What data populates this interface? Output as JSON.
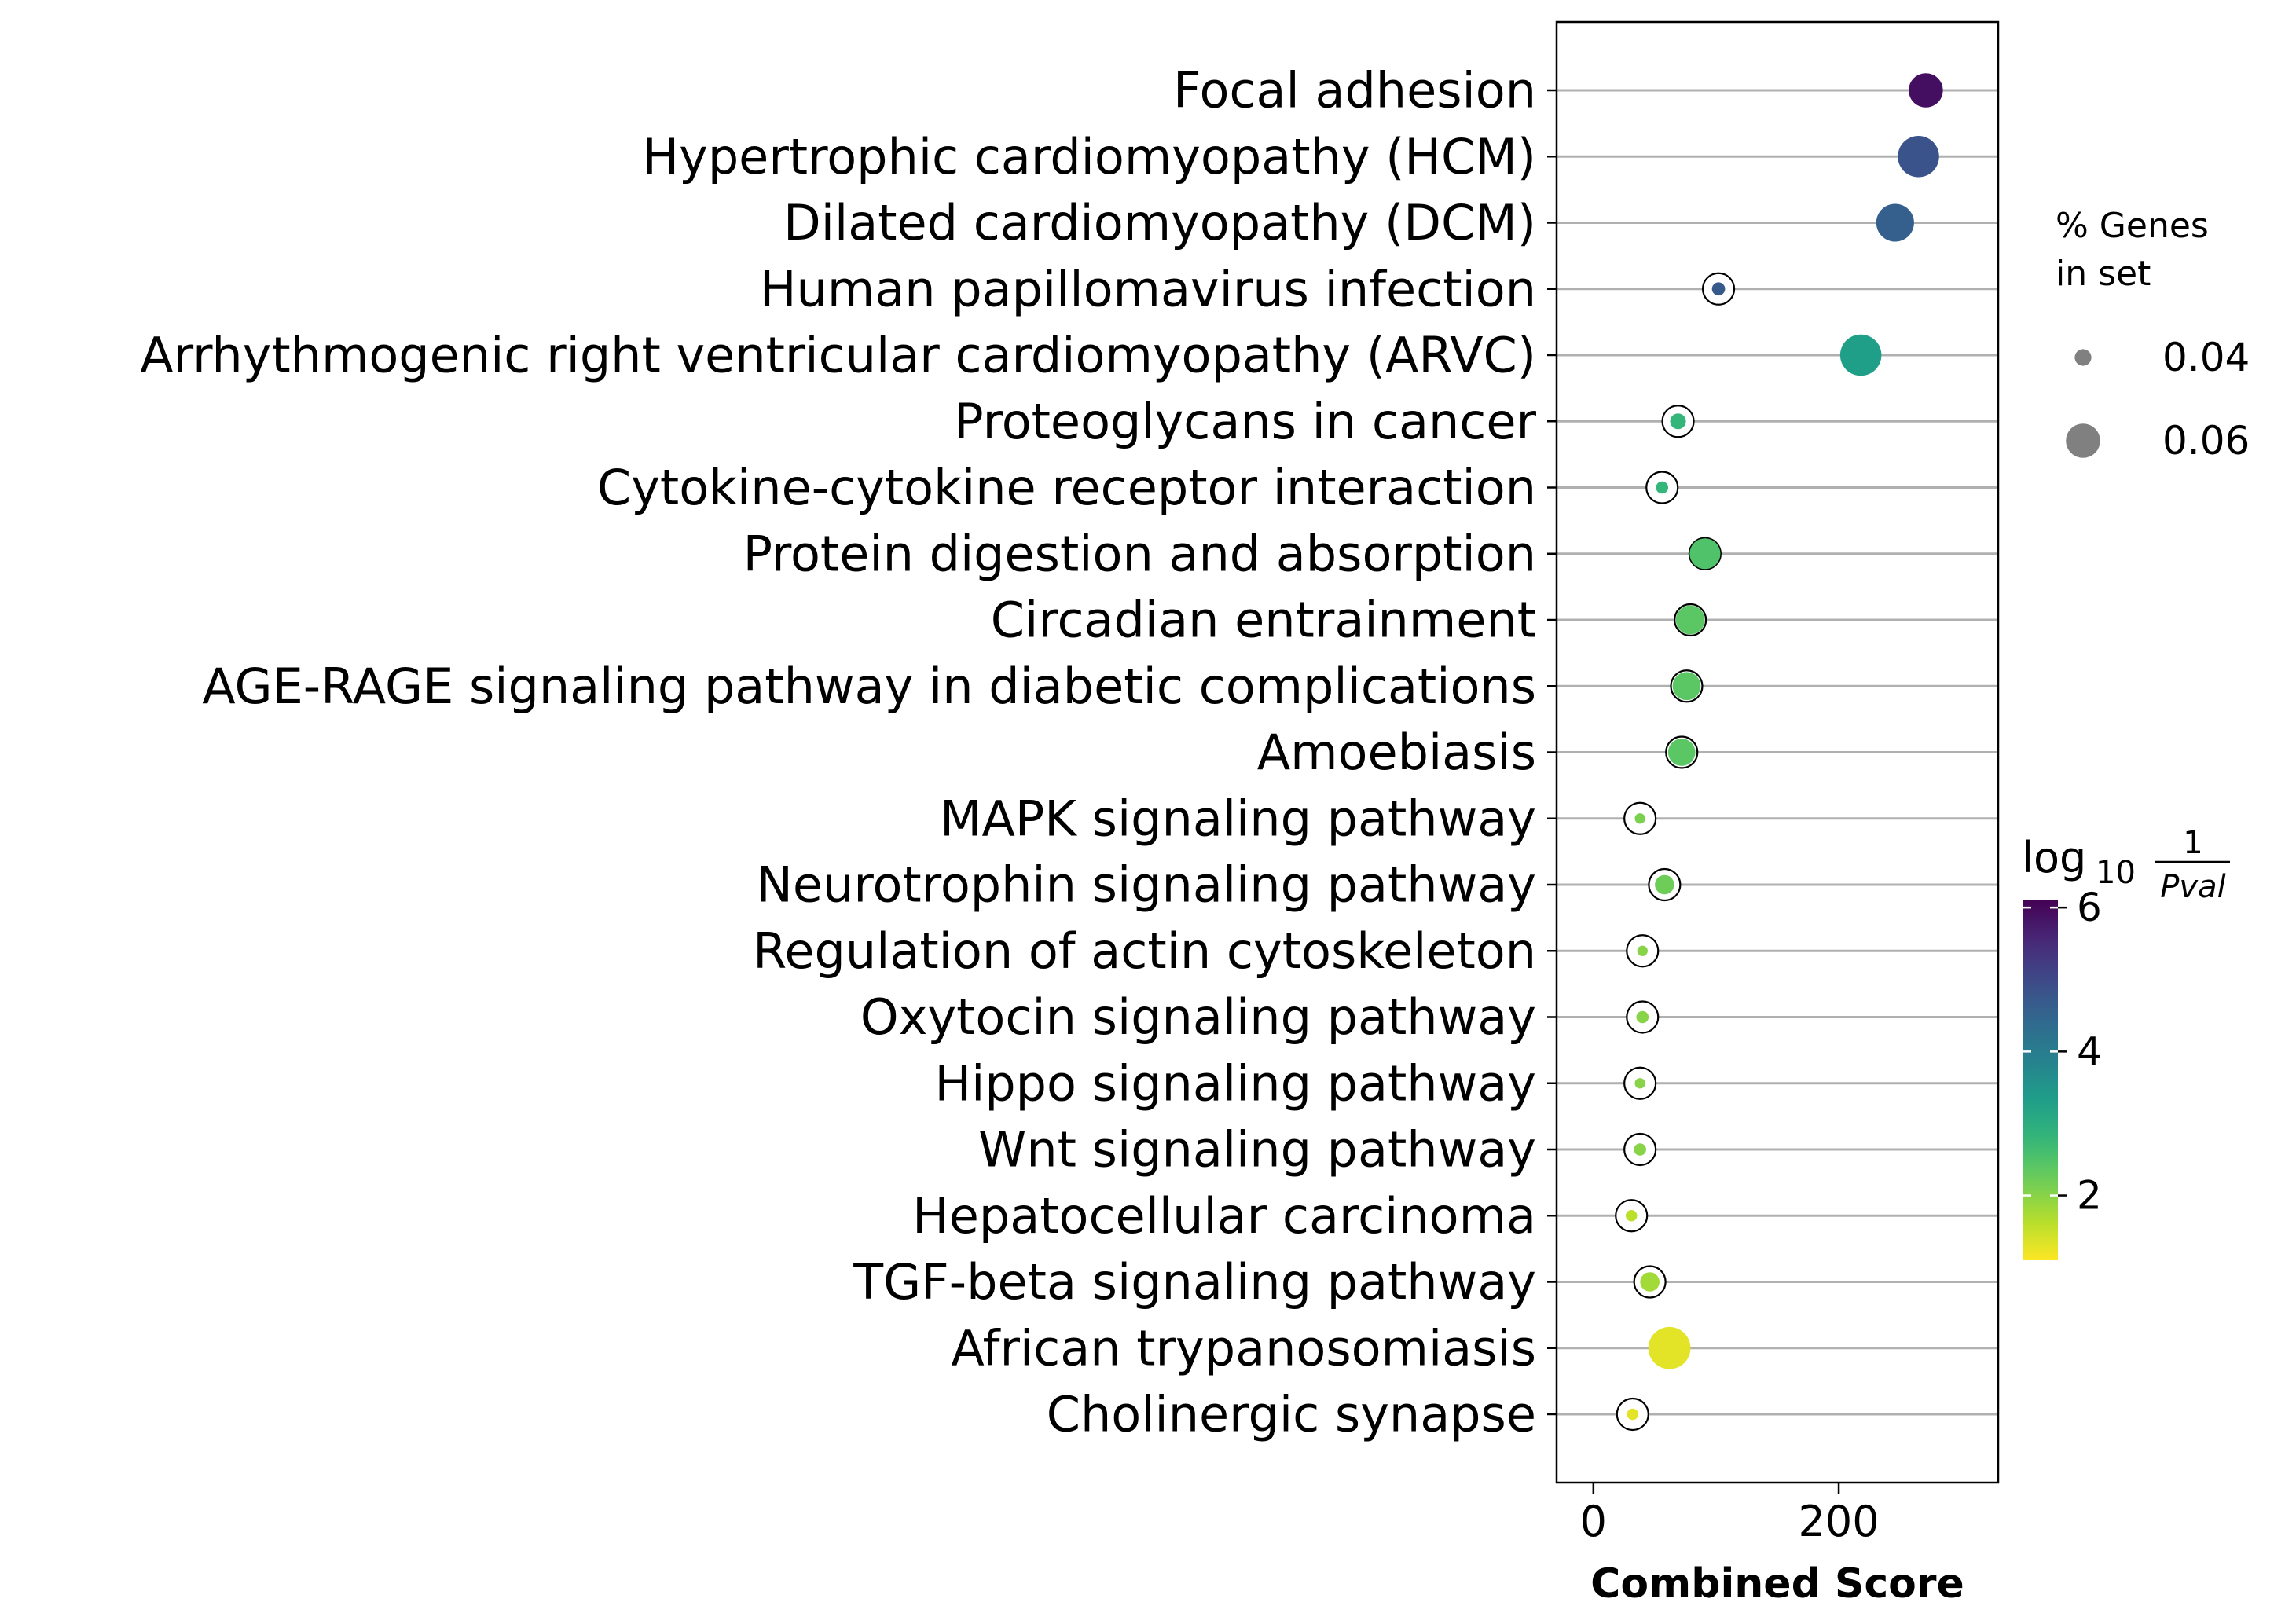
{
  "chart_data": {
    "type": "scatter",
    "xlabel": "Combined Score",
    "ylabel": "",
    "xlim": [
      -30,
      330
    ],
    "xticks": [
      0,
      200
    ],
    "grid": "horizontal",
    "categories": [
      "Focal adhesion",
      "Hypertrophic cardiomyopathy (HCM)",
      "Dilated cardiomyopathy (DCM)",
      "Human papillomavirus infection",
      "Arrhythmogenic right ventricular cardiomyopathy (ARVC)",
      "Proteoglycans in cancer",
      "Cytokine-cytokine receptor interaction",
      "Protein digestion and absorption",
      "Circadian entrainment",
      "AGE-RAGE signaling pathway in diabetic complications",
      "Amoebiasis",
      "MAPK signaling pathway",
      "Neurotrophin signaling pathway",
      "Regulation of actin cytoskeleton",
      "Oxytocin signaling pathway",
      "Hippo signaling pathway",
      "Wnt signaling pathway",
      "Hepatocellular carcinoma",
      "TGF-beta signaling pathway",
      "African trypanosomiasis",
      "Cholinergic synapse"
    ],
    "series": [
      {
        "x": [
          271,
          265,
          246,
          102,
          218,
          69,
          56,
          91,
          79,
          76,
          72,
          38,
          58,
          40,
          40,
          38,
          38,
          31,
          46,
          62,
          32
        ],
        "log10_inv_pval": [
          5.9,
          4.8,
          4.6,
          4.7,
          3.3,
          2.8,
          2.8,
          2.5,
          2.4,
          2.4,
          2.4,
          2.1,
          2.2,
          2.0,
          2.0,
          2.0,
          2.0,
          1.6,
          1.8,
          1.3,
          1.3
        ],
        "pct_genes_in_set": [
          0.06,
          0.068,
          0.064,
          0.036,
          0.068,
          0.039,
          0.035,
          0.056,
          0.054,
          0.053,
          0.052,
          0.033,
          0.043,
          0.033,
          0.035,
          0.033,
          0.035,
          0.034,
          0.043,
          0.069,
          0.034
        ]
      }
    ],
    "size_legend": {
      "title_line1": "% Genes",
      "title_line2": "in set",
      "entries": [
        {
          "label": "0.04",
          "value": 0.04
        },
        {
          "label": "0.06",
          "value": 0.06
        }
      ]
    },
    "colorbar": {
      "label_main": "log",
      "label_sub": "10",
      "label_num": "1",
      "label_den": "Pval",
      "range": [
        1.1,
        6.1
      ],
      "ticks": [
        {
          "label": "2",
          "value": 2
        },
        {
          "label": "4",
          "value": 4
        },
        {
          "label": "6",
          "value": 6
        }
      ],
      "colormap": "viridis_r"
    }
  }
}
